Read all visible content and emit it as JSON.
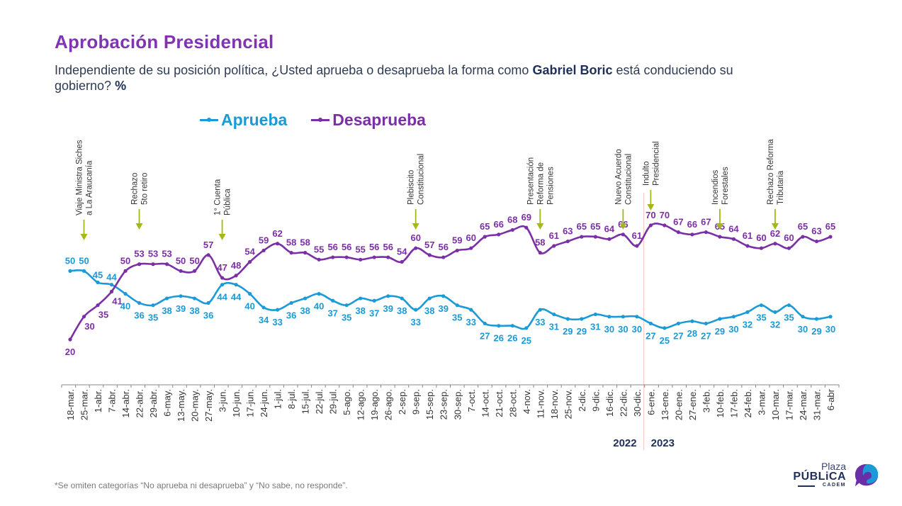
{
  "header": {
    "title": "Aprobación Presidencial",
    "subtitle_part1": "Independiente de su posición política, ¿Usted aprueba o desaprueba la forma como ",
    "subtitle_bold": "Gabriel Boric",
    "subtitle_part2": " está conduciendo su gobierno? ",
    "subtitle_unit": "%"
  },
  "footnote": "*Se omiten categorías “No aprueba ni desaprueba” y “No sabe, no responde”.",
  "logo": {
    "line1": "Plaza",
    "line2": "PÚBLiCA",
    "line3": "CADEM"
  },
  "colors": {
    "aprueba": "#1a9ad6",
    "desaprueba": "#7b2fa6",
    "arrow": "#a6b814",
    "title": "#7f35b2",
    "axis": "#666666",
    "year": "#1f2f5a"
  },
  "chart_data": {
    "type": "line",
    "title": "Aprobación Presidencial",
    "xlabel": "",
    "ylabel": "%",
    "ylim": [
      10,
      80
    ],
    "grid": false,
    "legend_position": "top",
    "categories": [
      "18-mar.",
      "25-mar.",
      "1-abr.",
      "7-abr.",
      "14-abr.",
      "22-abr.",
      "29-abr.",
      "6-may.",
      "13-may.",
      "20-may.",
      "27-may.",
      "3-jun.",
      "10-jun.",
      "17-jun.",
      "24-jun.",
      "1-jul.",
      "8-jul.",
      "15-jul.",
      "22-jul.",
      "29-jul.",
      "5-ago.",
      "12-ago.",
      "19-ago.",
      "26-ago.",
      "2-sep.",
      "9-sep.",
      "15-sep.",
      "23-sep.",
      "30-sep.",
      "7-oct.",
      "14-oct.",
      "21-oct.",
      "28-oct.",
      "4-nov.",
      "11-nov.",
      "18-nov.",
      "25-nov.",
      "2-dic.",
      "9-dic.",
      "16-dic.",
      "22-dic.",
      "30-dic.",
      "6-ene.",
      "13-ene.",
      "20-ene.",
      "27-ene.",
      "3-feb.",
      "10-feb.",
      "17-feb.",
      "24-feb.",
      "3-mar.",
      "10-mar.",
      "17-mar.",
      "24-mar.",
      "31-mar.",
      "6-abr"
    ],
    "series": [
      {
        "name": "Aprueba",
        "values": [
          50,
          50,
          45,
          44,
          40,
          36,
          35,
          38,
          39,
          38,
          36,
          44,
          44,
          40,
          34,
          33,
          36,
          38,
          40,
          37,
          35,
          38,
          37,
          39,
          38,
          33,
          38,
          39,
          35,
          33,
          27,
          26,
          26,
          25,
          33,
          31,
          29,
          29,
          31,
          30,
          30,
          30,
          27,
          25,
          27,
          28,
          27,
          29,
          30,
          32,
          35,
          32,
          35,
          30,
          29,
          30
        ]
      },
      {
        "name": "Desaprueba",
        "values": [
          20,
          30,
          35,
          41,
          50,
          53,
          53,
          53,
          50,
          50,
          57,
          47,
          48,
          54,
          59,
          62,
          58,
          58,
          55,
          56,
          56,
          55,
          56,
          56,
          54,
          60,
          57,
          56,
          59,
          60,
          65,
          66,
          68,
          69,
          58,
          61,
          63,
          65,
          65,
          64,
          66,
          61,
          70,
          70,
          67,
          66,
          67,
          65,
          64,
          61,
          60,
          62,
          60,
          65,
          63,
          65
        ]
      }
    ],
    "year_labels": [
      {
        "label": "2022",
        "position": "before-divider"
      },
      {
        "label": "2023",
        "position": "after-divider"
      }
    ],
    "year_divider_between": [
      "30-dic.",
      "6-ene."
    ],
    "annotations": [
      {
        "category": "25-mar.",
        "lines": [
          "Viaje Ministra Siches",
          "a La Araucanía"
        ]
      },
      {
        "category": "22-abr.",
        "lines": [
          "Rechazo",
          "5to retiro"
        ]
      },
      {
        "category": "3-jun.",
        "lines": [
          "1° Cuenta",
          "Pública"
        ]
      },
      {
        "category": "9-sep.",
        "lines": [
          "Plebiscito",
          "Constitucional"
        ]
      },
      {
        "category": "11-nov.",
        "lines": [
          "Presentación",
          "Reforma de",
          "Pensiones"
        ]
      },
      {
        "category": "22-dic.",
        "lines": [
          "Nuevo Acuerdo",
          "Constitucional"
        ]
      },
      {
        "category": "6-ene.",
        "lines": [
          "Indulto",
          "Presidencial"
        ]
      },
      {
        "category": "10-feb.",
        "lines": [
          "Incendios",
          "Forestales"
        ]
      },
      {
        "category": "10-mar.",
        "lines": [
          "Rechazo Reforma",
          "Tributaria"
        ]
      }
    ]
  }
}
